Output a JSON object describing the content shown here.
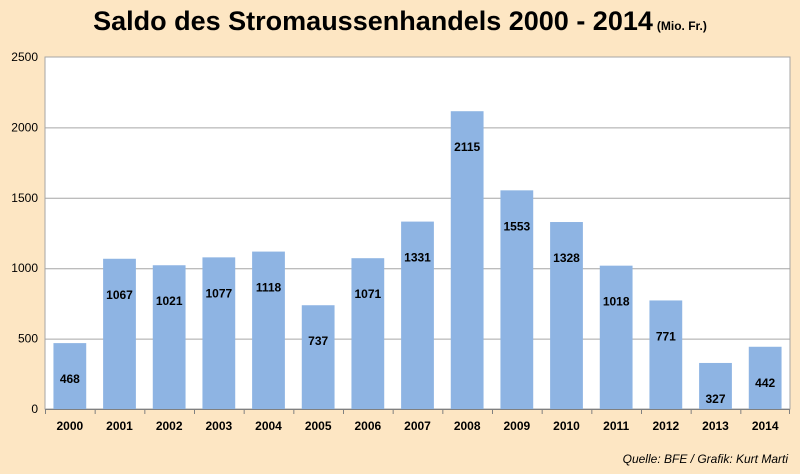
{
  "title": "Saldo des Stromaussenhandels 2000 - 2014",
  "subtitle": "(Mio. Fr.)",
  "source": "Quelle: BFE / Grafik: Kurt Marti",
  "colors": {
    "background": "#fde6c3",
    "plot_area": "#ffffff",
    "bar": "#8eb4e3",
    "grid": "#a6a6a6"
  },
  "chart_data": {
    "type": "bar",
    "categories": [
      "2000",
      "2001",
      "2002",
      "2003",
      "2004",
      "2005",
      "2006",
      "2007",
      "2008",
      "2009",
      "2010",
      "2011",
      "2012",
      "2013",
      "2014"
    ],
    "values": [
      468,
      1067,
      1021,
      1077,
      1118,
      737,
      1071,
      1331,
      2115,
      1553,
      1328,
      1018,
      771,
      327,
      442
    ],
    "ylim": [
      0,
      2500
    ],
    "yticks": [
      0,
      500,
      1000,
      1500,
      2000,
      2500
    ],
    "grid": true,
    "data_labels": true
  }
}
